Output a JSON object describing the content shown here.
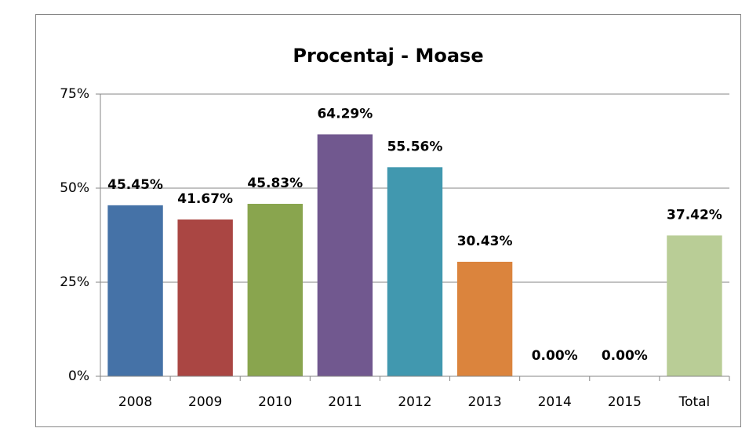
{
  "chart_data": {
    "type": "bar",
    "title": "Procentaj - Moase",
    "categories": [
      "2008",
      "2009",
      "2010",
      "2011",
      "2012",
      "2013",
      "2014",
      "2015",
      "Total"
    ],
    "values": [
      45.45,
      41.67,
      45.83,
      64.29,
      55.56,
      30.43,
      0,
      0,
      37.42
    ],
    "value_labels": [
      "45.45%",
      "41.67%",
      "45.83%",
      "64.29%",
      "55.56%",
      "30.43%",
      "0.00%",
      "0.00%",
      "37.42%"
    ],
    "colors": [
      "#4572a7",
      "#aa4643",
      "#89a54e",
      "#71588f",
      "#4198af",
      "#db843d",
      "#93a9cf",
      "#d19392",
      "#b9cd96"
    ],
    "ylim": [
      0,
      75
    ],
    "yticks": [
      {
        "value": 0,
        "label": "0%"
      },
      {
        "value": 25,
        "label": "25%"
      },
      {
        "value": 50,
        "label": "50%"
      },
      {
        "value": 75,
        "label": "75%"
      }
    ],
    "grid": true
  }
}
